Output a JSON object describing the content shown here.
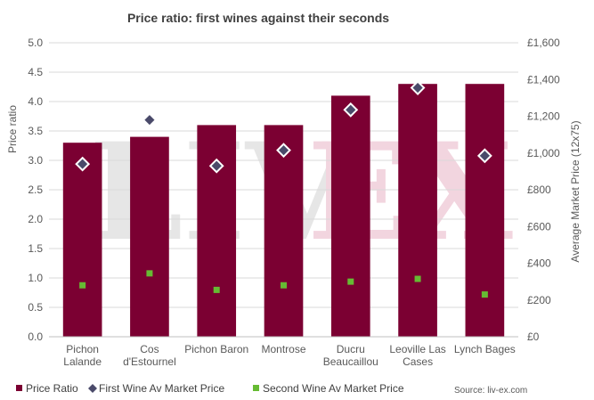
{
  "chart_data": {
    "type": "bar",
    "title": "Price ratio: first wines against their seconds",
    "categories": [
      [
        "Pichon",
        "Lalande"
      ],
      [
        "Cos",
        "d'Estournel"
      ],
      [
        "Pichon Baron"
      ],
      [
        "Montrose"
      ],
      [
        "Ducru",
        "Beaucaillou"
      ],
      [
        "Leoville Las",
        "Cases"
      ],
      [
        "Lynch Bages"
      ]
    ],
    "ylabel": "Price ratio",
    "y2label": "Average Market Price (12x75)",
    "ylim": [
      0,
      5
    ],
    "y2lim": [
      0,
      1600
    ],
    "yticks": [
      "0.0",
      "0.5",
      "1.0",
      "1.5",
      "2.0",
      "2.5",
      "3.0",
      "3.5",
      "4.0",
      "4.5",
      "5.0"
    ],
    "y2ticks": [
      "£0",
      "£200",
      "£400",
      "£600",
      "£800",
      "£1,000",
      "£1,200",
      "£1,400",
      "£1,600"
    ],
    "series": [
      {
        "name": "Price Ratio",
        "kind": "bar",
        "axis": "left",
        "color": "#7b0032",
        "values": [
          3.3,
          3.4,
          3.6,
          3.6,
          4.1,
          4.3,
          4.3
        ]
      },
      {
        "name": "First Wine Av Market Price",
        "kind": "diamond",
        "axis": "right",
        "color": "#4a4a6a",
        "values": [
          940,
          1180,
          930,
          1015,
          1235,
          1355,
          985
        ]
      },
      {
        "name": "Second Wine Av Market Price",
        "kind": "square",
        "axis": "right",
        "color": "#66bb33",
        "values": [
          280,
          345,
          255,
          280,
          300,
          315,
          230
        ]
      }
    ],
    "legend": "bottom-left",
    "grid": true
  },
  "watermark": {
    "left": "LIV",
    "right": "EX",
    "left_color": "#e6e6e6",
    "right_color": "#f2d5df"
  },
  "source": "Source: liv-ex.com"
}
